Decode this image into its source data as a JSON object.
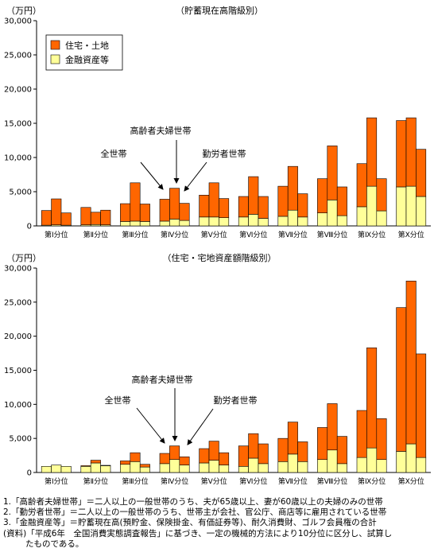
{
  "colors": {
    "housing": "#ff6600",
    "financial": "#ffff99",
    "outline": "#000000"
  },
  "chart_data": [
    {
      "type": "bar",
      "stacked": true,
      "title": "（貯蓄現在高階級別）",
      "unit_label": "（万円）",
      "ylim": [
        0,
        30000
      ],
      "yticks": [
        "0",
        "5,000",
        "10,000",
        "15,000",
        "20,000",
        "25,000",
        "30,000"
      ],
      "categories": [
        "第Ⅰ分位",
        "第Ⅱ分位",
        "第Ⅲ分位",
        "第Ⅳ分位",
        "第Ⅴ分位",
        "第Ⅵ分位",
        "第Ⅶ分位",
        "第Ⅷ分位",
        "第Ⅸ分位",
        "第Ⅹ分位"
      ],
      "bar_groups": [
        "全世帯",
        "高齢者夫婦世帯",
        "勤労者世帯"
      ],
      "legend": [
        "住宅・土地",
        "金融資産等"
      ],
      "legend_position": "top-left",
      "series": [
        {
          "name": "住宅・土地",
          "values": [
            [
              2150,
              3800,
              1800
            ],
            [
              2550,
              1800,
              2150
            ],
            [
              2600,
              5600,
              2550
            ],
            [
              3200,
              4500,
              2500
            ],
            [
              3200,
              5000,
              2800
            ],
            [
              3000,
              5500,
              3200
            ],
            [
              4400,
              6400,
              3400
            ],
            [
              5000,
              7900,
              4200
            ],
            [
              6300,
              10000,
              4700
            ],
            [
              9700,
              10000,
              6900
            ]
          ]
        },
        {
          "name": "金融資産等",
          "values": [
            [
              100,
              150,
              100
            ],
            [
              150,
              200,
              150
            ],
            [
              650,
              700,
              650
            ],
            [
              700,
              1000,
              800
            ],
            [
              1300,
              1300,
              1200
            ],
            [
              1300,
              1700,
              1100
            ],
            [
              1400,
              2300,
              1300
            ],
            [
              1900,
              3800,
              1500
            ],
            [
              2800,
              5800,
              2200
            ],
            [
              5700,
              5800,
              4300
            ]
          ]
        }
      ],
      "annotations": [
        "高齢者夫婦世帯",
        "全世帯",
        "勤労者世帯"
      ]
    },
    {
      "type": "bar",
      "stacked": true,
      "title": "（住宅・宅地資産額階級別）",
      "unit_label": "（万円）",
      "ylim": [
        0,
        30000
      ],
      "yticks": [
        "0",
        "5,000",
        "10,000",
        "15,000",
        "20,000",
        "25,000",
        "30,000"
      ],
      "categories": [
        "第Ⅰ分位",
        "第Ⅱ分位",
        "第Ⅲ分位",
        "第Ⅳ分位",
        "第Ⅴ分位",
        "第Ⅵ分位",
        "第Ⅶ分位",
        "第Ⅷ分位",
        "第Ⅸ分位",
        "第Ⅹ分位"
      ],
      "bar_groups": [
        "全世帯",
        "高齢者夫婦世帯",
        "勤労者世帯"
      ],
      "series": [
        {
          "name": "住宅・土地",
          "values": [
            [
              0,
              0,
              0
            ],
            [
              100,
              400,
              50
            ],
            [
              500,
              1300,
              400
            ],
            [
              1500,
              2000,
              1200
            ],
            [
              2100,
              2800,
              1800
            ],
            [
              3000,
              3600,
              2900
            ],
            [
              3400,
              4700,
              2900
            ],
            [
              4700,
              6800,
              4000
            ],
            [
              6900,
              14700,
              6000
            ],
            [
              21100,
              23900,
              15200
            ]
          ]
        },
        {
          "name": "金融資産等",
          "values": [
            [
              900,
              1100,
              900
            ],
            [
              900,
              1400,
              1000
            ],
            [
              1200,
              1600,
              800
            ],
            [
              1300,
              1900,
              1100
            ],
            [
              1400,
              1800,
              1100
            ],
            [
              900,
              2100,
              1300
            ],
            [
              1600,
              2700,
              1600
            ],
            [
              1900,
              3300,
              1300
            ],
            [
              2200,
              3600,
              1900
            ],
            [
              3100,
              4200,
              2200
            ]
          ]
        }
      ],
      "annotations": [
        "高齢者夫婦世帯",
        "全世帯",
        "勤労者世帯"
      ]
    }
  ],
  "notes": [
    "1.「高齢者夫婦世帯」＝二人以上の一般世帯のうち、夫が65歳以上、妻が60歳以上の夫婦のみの世帯",
    "2.「勤労者世帯」＝二人以上の一般世帯のうち、世帯主が会社、官公庁、商店等に雇用されている世帯",
    "3.「金融資産等」＝貯蓄現在高(預貯金、保険掛金、有価証券等)、耐久消費財、ゴルフ会員権の合計",
    "(資料)「平成6年　全国消費実態調査報告」に基づき、一定の機械的方法により10分位に区分し、試算し",
    "たものである。"
  ]
}
